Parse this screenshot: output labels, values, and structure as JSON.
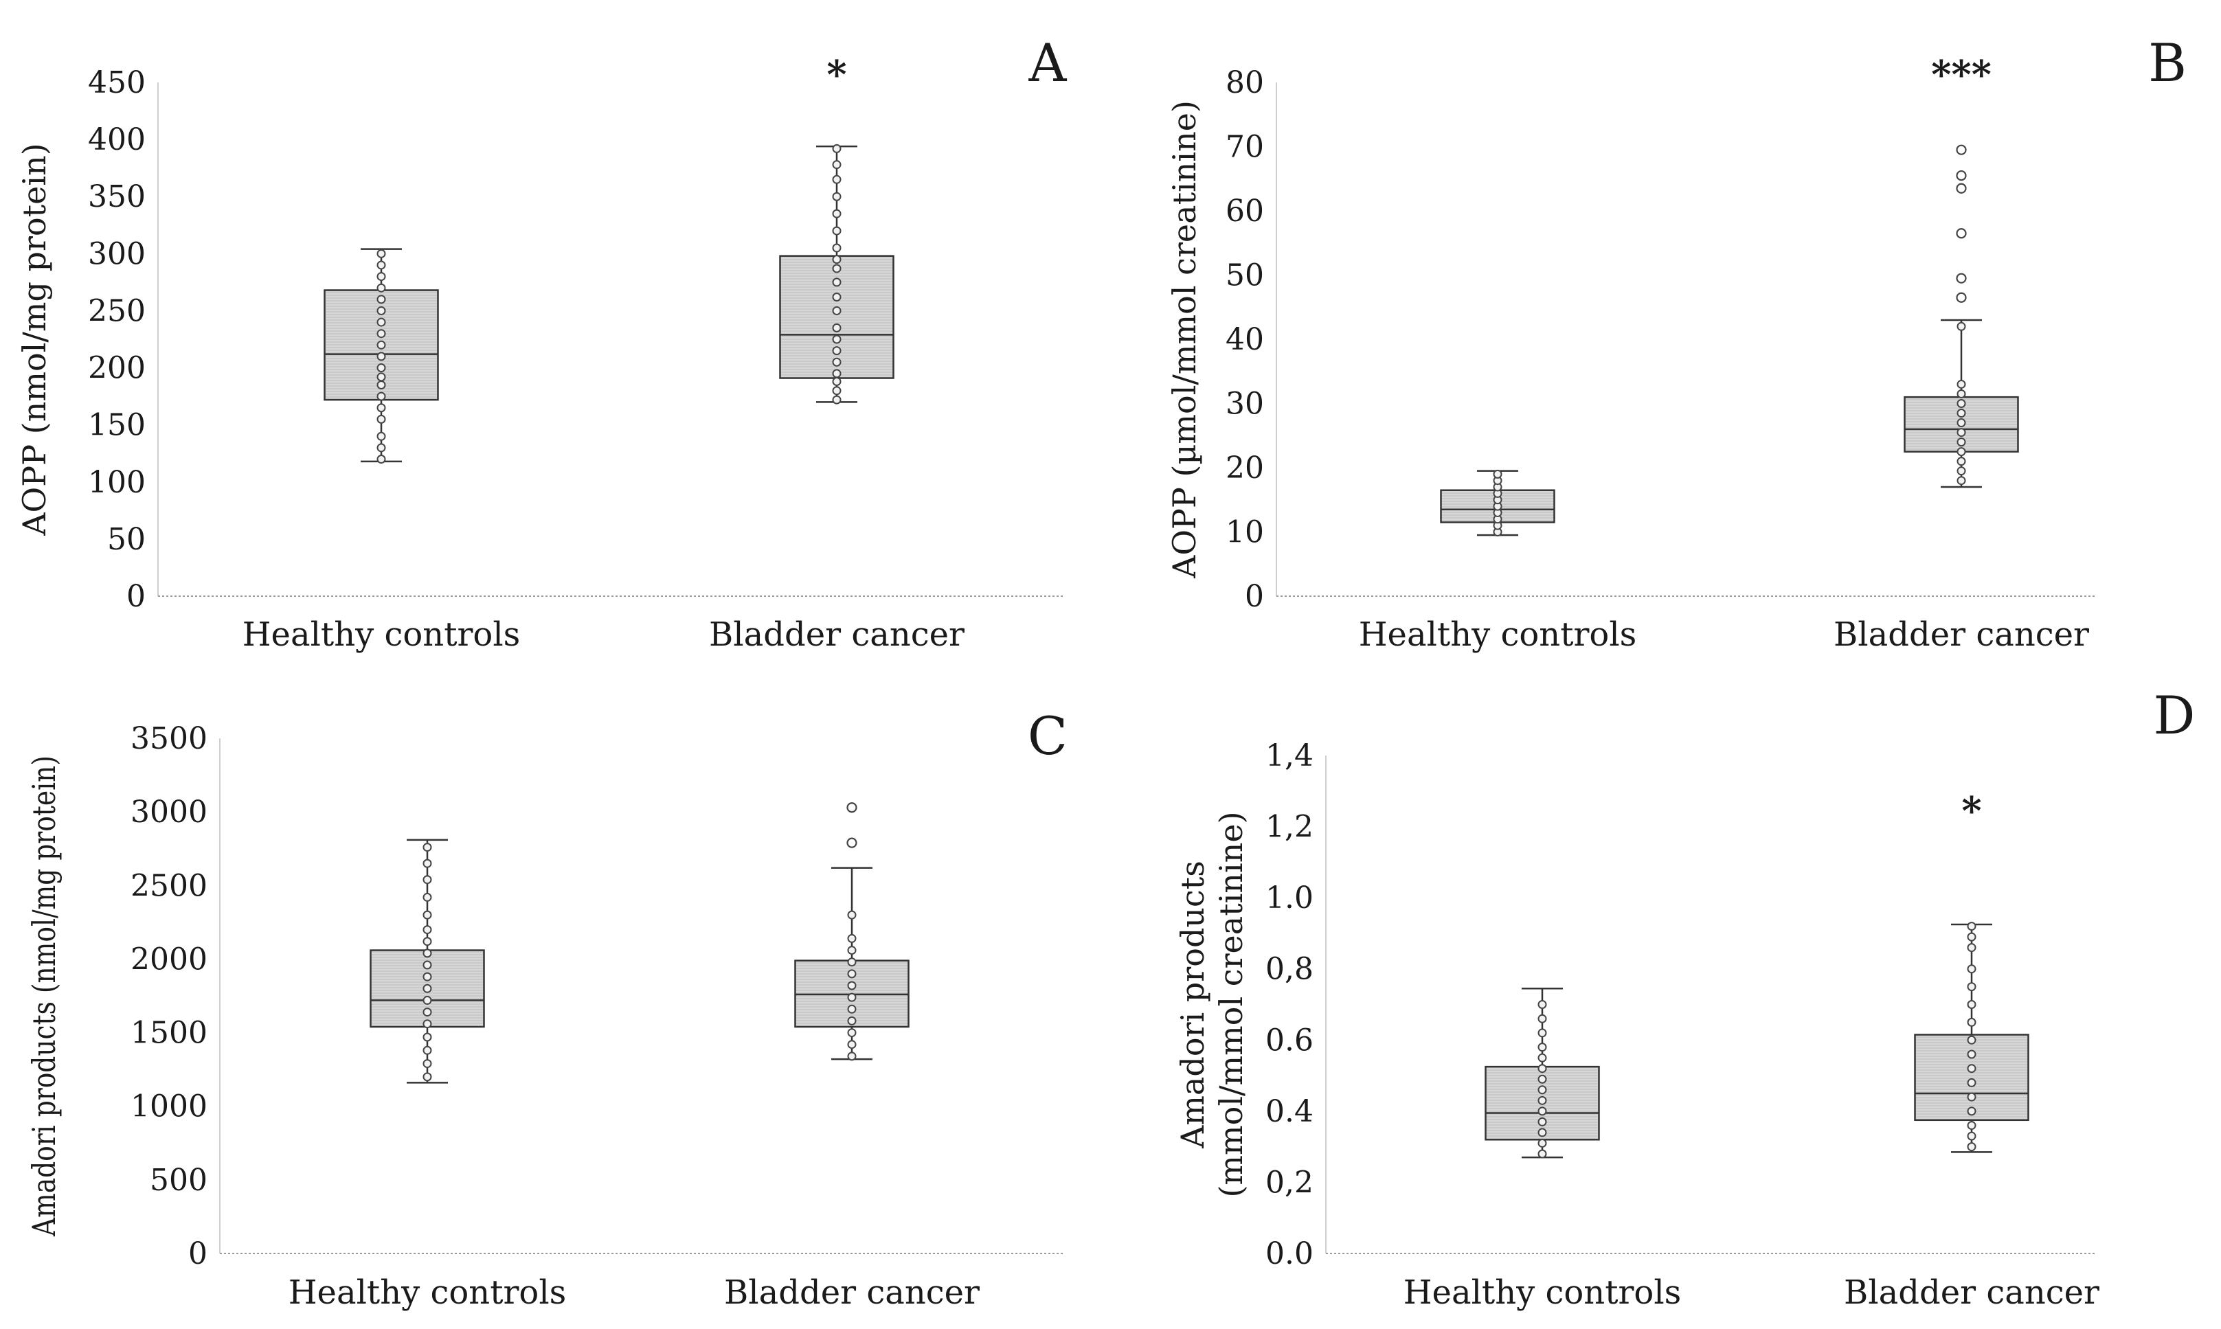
{
  "chart_data": [
    {
      "panel_label": "A",
      "type": "box",
      "categories": [
        "Healthy controls",
        "Bladder cancer"
      ],
      "ylabel": "AOPP (nmol/mg protein)",
      "ylim": [
        0,
        450
      ],
      "yticks": [
        0,
        50,
        100,
        150,
        200,
        250,
        300,
        350,
        400,
        450
      ],
      "ytick_labels": [
        "0",
        "50",
        "100",
        "150",
        "200",
        "250",
        "300",
        "350",
        "400",
        "450"
      ],
      "significance": [
        "",
        "*"
      ],
      "boxes": [
        {
          "min": 118,
          "q1": 172,
          "median": 212,
          "q3": 268,
          "max": 304,
          "outliers": [],
          "points": [
            120,
            130,
            140,
            155,
            165,
            175,
            185,
            192,
            200,
            210,
            220,
            230,
            240,
            250,
            260,
            270,
            280,
            290,
            300
          ]
        },
        {
          "min": 170,
          "q1": 191,
          "median": 229,
          "q3": 298,
          "max": 394,
          "outliers": [],
          "points": [
            172,
            180,
            188,
            195,
            205,
            215,
            225,
            235,
            250,
            262,
            275,
            287,
            295,
            305,
            320,
            335,
            350,
            365,
            378,
            392
          ]
        }
      ]
    },
    {
      "panel_label": "B",
      "type": "box",
      "categories": [
        "Healthy controls",
        "Bladder cancer"
      ],
      "ylabel": "AOPP (µmol/mmol creatinine)",
      "ylim": [
        0,
        80
      ],
      "yticks": [
        0,
        10,
        20,
        30,
        40,
        50,
        60,
        70,
        80
      ],
      "ytick_labels": [
        "0",
        "10",
        "20",
        "30",
        "40",
        "50",
        "60",
        "70",
        "80"
      ],
      "significance": [
        "",
        "***"
      ],
      "boxes": [
        {
          "min": 9.5,
          "q1": 11.5,
          "median": 13.5,
          "q3": 16.5,
          "max": 19.5,
          "outliers": [],
          "points": [
            10,
            11,
            12,
            13,
            14,
            15,
            16,
            17,
            18,
            19
          ]
        },
        {
          "min": 17,
          "q1": 22.5,
          "median": 26,
          "q3": 31,
          "max": 43,
          "outliers": [
            46.5,
            49.5,
            56.5,
            63.5,
            65.5,
            69.5
          ],
          "points": [
            18,
            19.5,
            21,
            22.5,
            24,
            25.5,
            27,
            28.5,
            30,
            31.5,
            33,
            42
          ]
        }
      ]
    },
    {
      "panel_label": "C",
      "type": "box",
      "categories": [
        "Healthy controls",
        "Bladder cancer"
      ],
      "ylabel": "Amadori products (nmol/mg protein)",
      "ylim": [
        0,
        3500
      ],
      "yticks": [
        0,
        500,
        1000,
        1500,
        2000,
        2500,
        3000,
        3500
      ],
      "ytick_labels": [
        "0",
        "500",
        "1000",
        "1500",
        "2000",
        "2500",
        "3000",
        "3500"
      ],
      "significance": [
        "",
        ""
      ],
      "boxes": [
        {
          "min": 1160,
          "q1": 1540,
          "median": 1720,
          "q3": 2060,
          "max": 2810,
          "outliers": [],
          "points": [
            1200,
            1290,
            1380,
            1470,
            1560,
            1640,
            1720,
            1800,
            1880,
            1960,
            2040,
            2120,
            2200,
            2300,
            2420,
            2540,
            2650,
            2760
          ]
        },
        {
          "min": 1320,
          "q1": 1540,
          "median": 1760,
          "q3": 1990,
          "max": 2620,
          "outliers": [
            2790,
            3030
          ],
          "points": [
            1340,
            1420,
            1500,
            1580,
            1660,
            1740,
            1820,
            1900,
            1980,
            2060,
            2140,
            2300
          ]
        }
      ]
    },
    {
      "panel_label": "D",
      "type": "box",
      "categories": [
        "Healthy controls",
        "Bladder cancer"
      ],
      "ylabel_lines": [
        "Amadori products",
        "(mmol/mmol creatinine)"
      ],
      "ylim": [
        0,
        1.4
      ],
      "yticks": [
        0,
        0.2,
        0.4,
        0.6,
        0.8,
        1.0,
        1.2,
        1.4
      ],
      "ytick_labels": [
        "0.0",
        "0,2",
        "0.4",
        "0.6",
        "0,8",
        "1.0",
        "1,2",
        "1,4"
      ],
      "significance": [
        "",
        "*"
      ],
      "boxes": [
        {
          "min": 0.27,
          "q1": 0.32,
          "median": 0.395,
          "q3": 0.525,
          "max": 0.745,
          "outliers": [],
          "points": [
            0.28,
            0.31,
            0.34,
            0.37,
            0.4,
            0.43,
            0.46,
            0.49,
            0.52,
            0.55,
            0.58,
            0.62,
            0.66,
            0.7
          ]
        },
        {
          "min": 0.285,
          "q1": 0.375,
          "median": 0.45,
          "q3": 0.615,
          "max": 0.925,
          "outliers": [],
          "points": [
            0.3,
            0.33,
            0.36,
            0.4,
            0.44,
            0.48,
            0.52,
            0.56,
            0.6,
            0.65,
            0.7,
            0.75,
            0.8,
            0.86,
            0.89,
            0.92
          ]
        }
      ]
    }
  ]
}
